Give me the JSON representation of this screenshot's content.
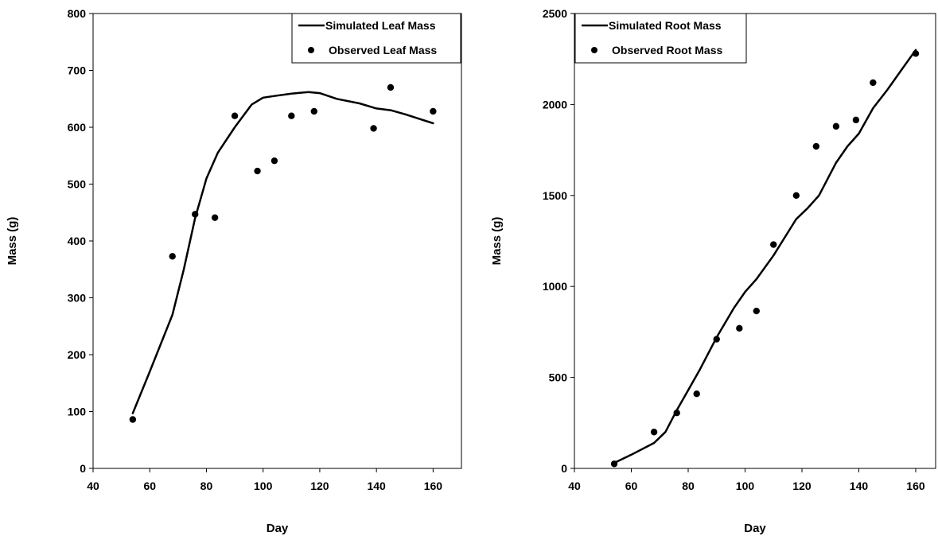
{
  "chart_data": [
    {
      "type": "line",
      "title": "",
      "xlabel": "Day",
      "ylabel": "Mass (g)",
      "xlim": [
        40,
        170
      ],
      "ylim": [
        0,
        800
      ],
      "xticks": [
        "40",
        "60",
        "80",
        "100",
        "120",
        "140",
        "160"
      ],
      "yticks": [
        "0",
        "100",
        "200",
        "300",
        "400",
        "500",
        "600",
        "700",
        "800"
      ],
      "grid": false,
      "legend_position": "top-right",
      "series": [
        {
          "name": "Simulated Leaf Mass",
          "style": "line",
          "x": [
            54,
            60,
            68,
            72,
            76,
            80,
            84,
            90,
            96,
            100,
            104,
            110,
            116,
            120,
            126,
            134,
            140,
            145,
            150,
            155,
            160
          ],
          "y": [
            97,
            170,
            270,
            350,
            440,
            510,
            555,
            600,
            640,
            652,
            655,
            659,
            662,
            660,
            650,
            642,
            633,
            630,
            623,
            615,
            607
          ]
        },
        {
          "name": "Observed Leaf Mass",
          "style": "markers",
          "x": [
            54,
            68,
            76,
            83,
            90,
            98,
            104,
            110,
            118,
            139,
            145,
            160
          ],
          "y": [
            86,
            373,
            447,
            441,
            620,
            523,
            541,
            620,
            628,
            598,
            670,
            628
          ]
        }
      ]
    },
    {
      "type": "line",
      "title": "",
      "xlabel": "Day",
      "ylabel": "Mass (g)",
      "xlim": [
        40,
        167
      ],
      "ylim": [
        0,
        2500
      ],
      "xticks": [
        "40",
        "60",
        "80",
        "100",
        "120",
        "140",
        "160"
      ],
      "yticks": [
        "0",
        "500",
        "1000",
        "1500",
        "2000",
        "2500"
      ],
      "grid": false,
      "legend_position": "top-left",
      "series": [
        {
          "name": "Simulated Root Mass",
          "style": "line",
          "x": [
            54,
            60,
            68,
            72,
            76,
            80,
            84,
            90,
            96,
            100,
            104,
            110,
            114,
            118,
            122,
            126,
            132,
            136,
            140,
            145,
            150,
            155,
            160
          ],
          "y": [
            30,
            75,
            140,
            200,
            320,
            430,
            540,
            720,
            880,
            970,
            1040,
            1170,
            1270,
            1370,
            1430,
            1500,
            1680,
            1770,
            1840,
            1980,
            2080,
            2190,
            2300
          ]
        },
        {
          "name": "Observed Root Mass",
          "style": "markers",
          "x": [
            54,
            68,
            76,
            83,
            90,
            98,
            104,
            110,
            118,
            125,
            132,
            139,
            145,
            160
          ],
          "y": [
            25,
            200,
            305,
            410,
            710,
            770,
            865,
            1230,
            1500,
            1770,
            1880,
            1915,
            2120,
            2280
          ]
        }
      ]
    }
  ]
}
